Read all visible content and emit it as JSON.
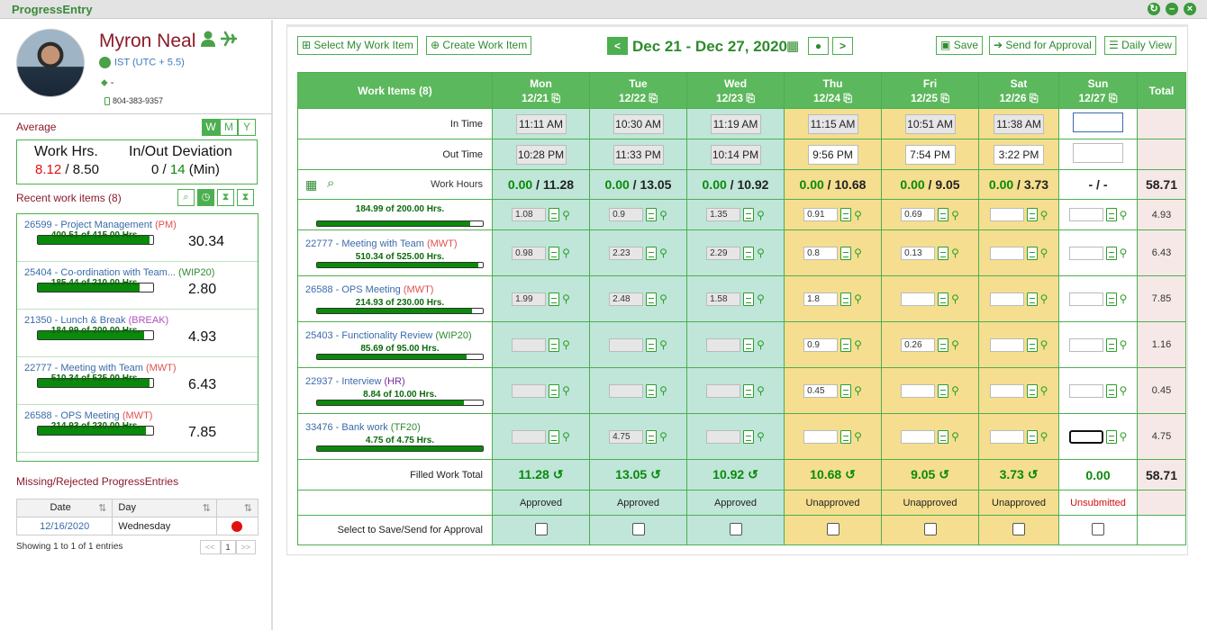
{
  "app": {
    "title": "ProgressEntry"
  },
  "profile": {
    "name": "Myron Neal",
    "timezone": "IST (UTC + 5.5)",
    "tag": "-",
    "phone": "804-383-9357"
  },
  "average": {
    "title": "Average",
    "toggles": [
      "W",
      "M",
      "Y"
    ],
    "active": "W",
    "work_hrs_label": "Work Hrs.",
    "work_hrs_value": "8.12",
    "work_hrs_total": "8.50",
    "deviation_label": "In/Out Deviation",
    "deviation_value": "0",
    "deviation_of": "14",
    "deviation_unit": "(Min)"
  },
  "recent": {
    "title": "Recent work items (8)",
    "items": [
      {
        "id": "26599",
        "name": "Project Management",
        "code": "(PM)",
        "hours": "400.51 of 415.00 Hrs.",
        "progress": 0.965,
        "value": "30.34"
      },
      {
        "id": "25404",
        "name": "Co-ordination with Team...",
        "code": "(WIP20)",
        "hours": "185.44 of 210.00 Hrs.",
        "progress": 0.883,
        "value": "2.80"
      },
      {
        "id": "21350",
        "name": "Lunch & Break",
        "code": "(BREAK)",
        "hours": "184.99 of 200.00 Hrs.",
        "progress": 0.925,
        "value": "4.93"
      },
      {
        "id": "22777",
        "name": "Meeting with Team",
        "code": "(MWT)",
        "hours": "510.34 of 525.00 Hrs.",
        "progress": 0.972,
        "value": "6.43"
      },
      {
        "id": "26588",
        "name": "OPS Meeting",
        "code": "(MWT)",
        "hours": "214.93 of 230.00 Hrs.",
        "progress": 0.934,
        "value": "7.85"
      }
    ]
  },
  "missing": {
    "title": "Missing/Rejected ProgressEntries",
    "col_date": "Date",
    "col_day": "Day",
    "row": {
      "date": "12/16/2020",
      "day": "Wednesday"
    },
    "showing": "Showing 1 to 1 of 1 entries",
    "page": "1",
    "prev": "<<",
    "next": ">>"
  },
  "toolbar": {
    "select_my": "Select My Work Item",
    "create": "Create Work Item",
    "date_range": "Dec 21 - Dec 27, 2020",
    "save": "Save",
    "send": "Send for Approval",
    "daily": "Daily View"
  },
  "grid": {
    "work_items_label": "Work Items (8)",
    "total_label": "Total",
    "days": [
      {
        "day": "Mon",
        "date": "12/21",
        "in": "11:11 AM",
        "out": "10:28 PM",
        "wh_a": "0.00",
        "wh_b": "11.28",
        "filled": "11.28",
        "status": "Approved"
      },
      {
        "day": "Tue",
        "date": "12/22",
        "in": "10:30 AM",
        "out": "11:33 PM",
        "wh_a": "0.00",
        "wh_b": "13.05",
        "filled": "13.05",
        "status": "Approved"
      },
      {
        "day": "Wed",
        "date": "12/23",
        "in": "11:19 AM",
        "out": "10:14 PM",
        "wh_a": "0.00",
        "wh_b": "10.92",
        "filled": "10.92",
        "status": "Approved"
      },
      {
        "day": "Thu",
        "date": "12/24",
        "in": "11:15 AM",
        "out": "9:56 PM",
        "wh_a": "0.00",
        "wh_b": "10.68",
        "filled": "10.68",
        "status": "Unapproved"
      },
      {
        "day": "Fri",
        "date": "12/25",
        "in": "10:51 AM",
        "out": "7:54 PM",
        "wh_a": "0.00",
        "wh_b": "9.05",
        "filled": "9.05",
        "status": "Unapproved"
      },
      {
        "day": "Sat",
        "date": "12/26",
        "in": "11:38 AM",
        "out": "3:22 PM",
        "wh_a": "0.00",
        "wh_b": "3.73",
        "filled": "3.73",
        "status": "Unapproved"
      },
      {
        "day": "Sun",
        "date": "12/27",
        "in": "",
        "out": "",
        "wh_a": "-",
        "wh_b": "-",
        "filled": "0.00",
        "status": "Unsubmitted"
      }
    ],
    "in_time_label": "In Time",
    "out_time_label": "Out Time",
    "work_hours_label": "Work Hours",
    "work_hours_total": "58.71",
    "filled_label": "Filled Work Total",
    "filled_total": "58.71",
    "select_label": "Select to Save/Send for Approval",
    "partial_item": {
      "hours": "184.99 of 200.00 Hrs.",
      "progress": 0.925,
      "values": [
        "1.08",
        "0.9",
        "1.35",
        "0.91",
        "0.69",
        "",
        ""
      ],
      "total": "4.93"
    },
    "items": [
      {
        "id": "22777",
        "name": "Meeting with Team",
        "code": "(MWT)",
        "hours": "510.34 of 525.00 Hrs.",
        "progress": 0.972,
        "values": [
          "0.98",
          "2.23",
          "2.29",
          "0.8",
          "0.13",
          "",
          ""
        ],
        "total": "6.43"
      },
      {
        "id": "26588",
        "name": "OPS Meeting",
        "code": "(MWT)",
        "hours": "214.93 of 230.00 Hrs.",
        "progress": 0.934,
        "values": [
          "1.99",
          "2.48",
          "1.58",
          "1.8",
          "",
          "",
          ""
        ],
        "total": "7.85"
      },
      {
        "id": "25403",
        "name": "Functionality Review",
        "code": "(WIP20)",
        "hours": "85.69 of 95.00 Hrs.",
        "progress": 0.902,
        "values": [
          "",
          "",
          "",
          "0.9",
          "0.26",
          "",
          ""
        ],
        "total": "1.16"
      },
      {
        "id": "22937",
        "name": "Interview",
        "code": "(HR)",
        "hours": "8.84 of 10.00 Hrs.",
        "progress": 0.884,
        "values": [
          "",
          "",
          "",
          "0.45",
          "",
          "",
          ""
        ],
        "total": "0.45"
      },
      {
        "id": "33476",
        "name": "Bank work",
        "code": "(TF20)",
        "hours": "4.75 of 4.75 Hrs.",
        "progress": 1.0,
        "values": [
          "",
          "4.75",
          "",
          "",
          "",
          "",
          ""
        ],
        "total": "4.75"
      }
    ]
  }
}
